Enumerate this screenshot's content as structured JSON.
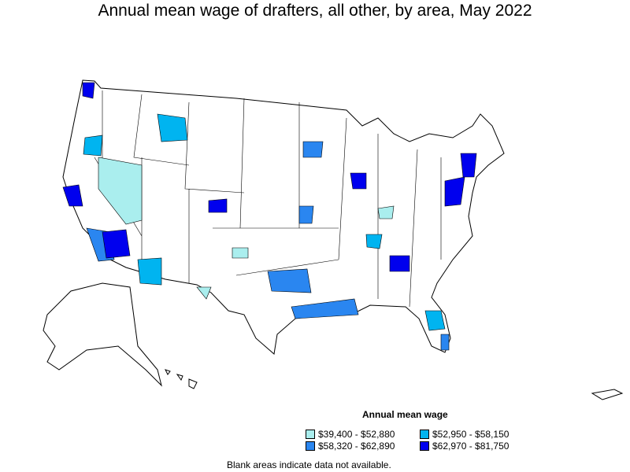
{
  "title": "Annual mean wage of drafters, all other, by area, May 2022",
  "legend": {
    "title": "Annual mean wage",
    "items": [
      {
        "label": "$39,400 - $52,880",
        "color": "#aaeeee"
      },
      {
        "label": "$52,950 - $58,150",
        "color": "#00b4f0"
      },
      {
        "label": "$58,320 - $62,890",
        "color": "#2a86f0"
      },
      {
        "label": "$62,970 - $81,750",
        "color": "#0000ee"
      }
    ]
  },
  "footnote": "Blank areas indicate data not available."
}
